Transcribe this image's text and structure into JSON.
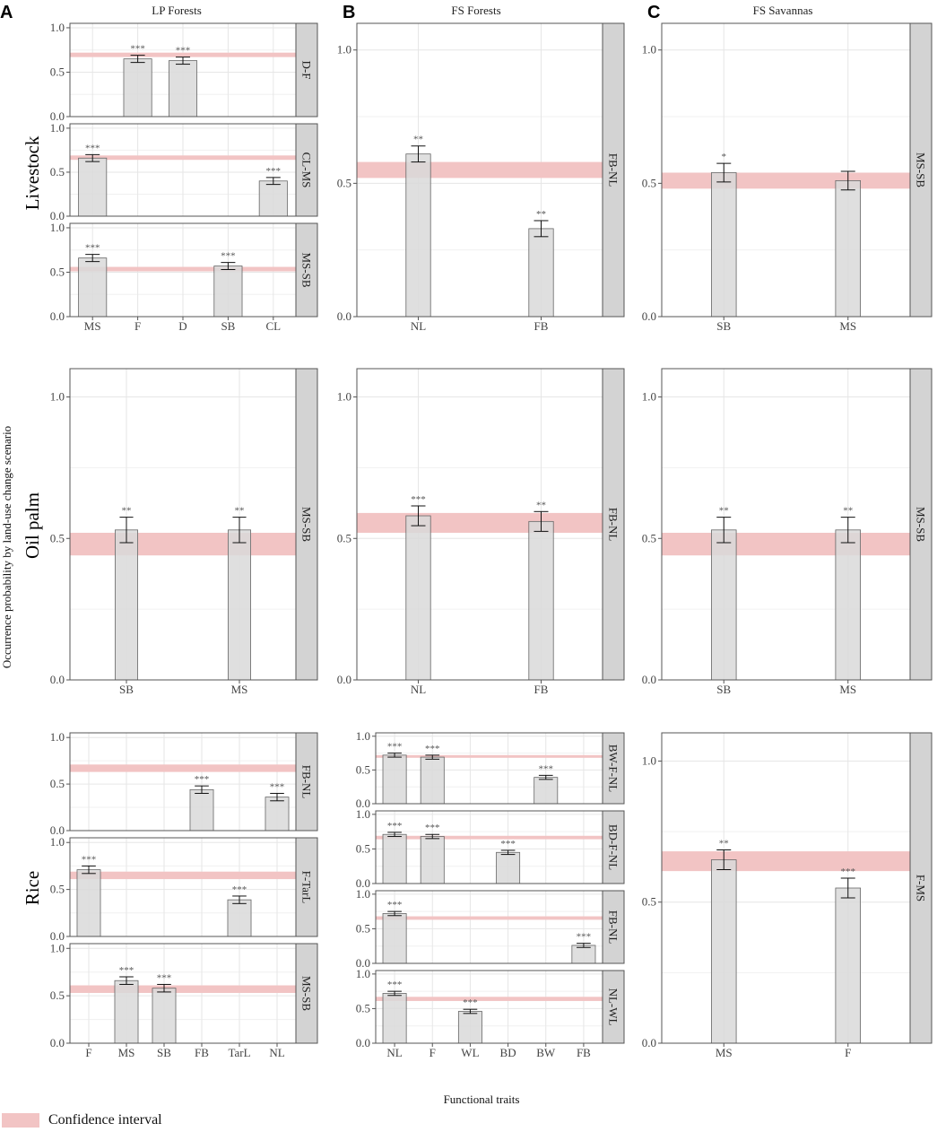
{
  "panel_letters": [
    "A",
    "B",
    "C"
  ],
  "column_titles": [
    "LP Forests",
    "FS Forests",
    "FS Savannas"
  ],
  "row_labels": [
    "Livestock",
    "Oil palm",
    "Rice"
  ],
  "y_axis_label": "Occurrence probability by land-use change scenario",
  "x_axis_label": "Functional traits",
  "legend": {
    "label": "Confidence interval",
    "color": "#f2c4c4"
  },
  "colors": {
    "bar_fill": "#d9d9d9",
    "bar_stroke": "#666666",
    "ci_band": "#f2c4c4",
    "strip_fill": "#d3d3d3",
    "grid": "#e6e6e6"
  },
  "chart_data": [
    {
      "type": "bar",
      "column": "LP Forests",
      "row": "Livestock",
      "categories": [
        "MS",
        "F",
        "D",
        "SB",
        "CL"
      ],
      "ylim": [
        0,
        1.05
      ],
      "yticks": [
        0.0,
        0.5,
        1.0
      ],
      "facets": [
        {
          "strip": "D-F",
          "ci": [
            0.67,
            0.72
          ],
          "bars": [
            {
              "x": "F",
              "y": 0.65,
              "err": 0.04,
              "sig": "***"
            },
            {
              "x": "D",
              "y": 0.63,
              "err": 0.04,
              "sig": "***"
            }
          ]
        },
        {
          "strip": "CL-MS",
          "ci": [
            0.64,
            0.69
          ],
          "bars": [
            {
              "x": "MS",
              "y": 0.66,
              "err": 0.04,
              "sig": "***"
            },
            {
              "x": "CL",
              "y": 0.4,
              "err": 0.04,
              "sig": "***"
            }
          ]
        },
        {
          "strip": "MS-SB",
          "ci": [
            0.51,
            0.56
          ],
          "bars": [
            {
              "x": "MS",
              "y": 0.66,
              "err": 0.04,
              "sig": "***"
            },
            {
              "x": "SB",
              "y": 0.57,
              "err": 0.04,
              "sig": "***"
            }
          ]
        }
      ]
    },
    {
      "type": "bar",
      "column": "FS Forests",
      "row": "Livestock",
      "categories": [
        "NL",
        "FB"
      ],
      "ylim": [
        0,
        1.1
      ],
      "yticks": [
        0.0,
        0.5,
        1.0
      ],
      "facets": [
        {
          "strip": "FB-NL",
          "ci": [
            0.52,
            0.58
          ],
          "bars": [
            {
              "x": "NL",
              "y": 0.61,
              "err": 0.03,
              "sig": "**"
            },
            {
              "x": "FB",
              "y": 0.33,
              "err": 0.03,
              "sig": "**"
            }
          ]
        }
      ]
    },
    {
      "type": "bar",
      "column": "FS Savannas",
      "row": "Livestock",
      "categories": [
        "SB",
        "MS"
      ],
      "ylim": [
        0,
        1.1
      ],
      "yticks": [
        0.0,
        0.5,
        1.0
      ],
      "facets": [
        {
          "strip": "MS-SB",
          "ci": [
            0.48,
            0.54
          ],
          "bars": [
            {
              "x": "SB",
              "y": 0.54,
              "err": 0.035,
              "sig": "*"
            },
            {
              "x": "MS",
              "y": 0.51,
              "err": 0.035,
              "sig": ""
            }
          ]
        }
      ]
    },
    {
      "type": "bar",
      "column": "LP Forests",
      "row": "Oil palm",
      "categories": [
        "SB",
        "MS"
      ],
      "ylim": [
        0,
        1.1
      ],
      "yticks": [
        0.0,
        0.5,
        1.0
      ],
      "facets": [
        {
          "strip": "MS-SB",
          "ci": [
            0.44,
            0.52
          ],
          "bars": [
            {
              "x": "SB",
              "y": 0.53,
              "err": 0.045,
              "sig": "**"
            },
            {
              "x": "MS",
              "y": 0.53,
              "err": 0.045,
              "sig": "**"
            }
          ]
        }
      ]
    },
    {
      "type": "bar",
      "column": "FS Forests",
      "row": "Oil palm",
      "categories": [
        "NL",
        "FB"
      ],
      "ylim": [
        0,
        1.1
      ],
      "yticks": [
        0.0,
        0.5,
        1.0
      ],
      "facets": [
        {
          "strip": "FB-NL",
          "ci": [
            0.52,
            0.59
          ],
          "bars": [
            {
              "x": "NL",
              "y": 0.58,
              "err": 0.035,
              "sig": "***"
            },
            {
              "x": "FB",
              "y": 0.56,
              "err": 0.035,
              "sig": "**"
            }
          ]
        }
      ]
    },
    {
      "type": "bar",
      "column": "FS Savannas",
      "row": "Oil palm",
      "categories": [
        "SB",
        "MS"
      ],
      "ylim": [
        0,
        1.1
      ],
      "yticks": [
        0.0,
        0.5,
        1.0
      ],
      "facets": [
        {
          "strip": "MS-SB",
          "ci": [
            0.44,
            0.52
          ],
          "bars": [
            {
              "x": "SB",
              "y": 0.53,
              "err": 0.045,
              "sig": "**"
            },
            {
              "x": "MS",
              "y": 0.53,
              "err": 0.045,
              "sig": "**"
            }
          ]
        }
      ]
    },
    {
      "type": "bar",
      "column": "LP Forests",
      "row": "Rice",
      "categories": [
        "F",
        "MS",
        "SB",
        "FB",
        "TarL",
        "NL"
      ],
      "ylim": [
        0,
        1.05
      ],
      "yticks": [
        0.0,
        0.5,
        1.0
      ],
      "facets": [
        {
          "strip": "FB-NL",
          "ci": [
            0.63,
            0.71
          ],
          "bars": [
            {
              "x": "FB",
              "y": 0.44,
              "err": 0.04,
              "sig": "***"
            },
            {
              "x": "NL",
              "y": 0.36,
              "err": 0.04,
              "sig": "***"
            }
          ]
        },
        {
          "strip": "F-TarL",
          "ci": [
            0.61,
            0.69
          ],
          "bars": [
            {
              "x": "F",
              "y": 0.71,
              "err": 0.04,
              "sig": "***"
            },
            {
              "x": "TarL",
              "y": 0.39,
              "err": 0.04,
              "sig": "***"
            }
          ]
        },
        {
          "strip": "MS-SB",
          "ci": [
            0.53,
            0.61
          ],
          "bars": [
            {
              "x": "MS",
              "y": 0.66,
              "err": 0.04,
              "sig": "***"
            },
            {
              "x": "SB",
              "y": 0.58,
              "err": 0.04,
              "sig": "***"
            }
          ]
        }
      ]
    },
    {
      "type": "bar",
      "column": "FS Forests",
      "row": "Rice",
      "categories": [
        "NL",
        "F",
        "WL",
        "BD",
        "BW",
        "FB"
      ],
      "ylim": [
        0,
        1.05
      ],
      "yticks": [
        0.0,
        0.5,
        1.0
      ],
      "facets": [
        {
          "strip": "BW-F-NL",
          "ci": [
            0.68,
            0.72
          ],
          "bars": [
            {
              "x": "NL",
              "y": 0.72,
              "err": 0.03,
              "sig": "***"
            },
            {
              "x": "F",
              "y": 0.69,
              "err": 0.03,
              "sig": "***"
            },
            {
              "x": "BW",
              "y": 0.39,
              "err": 0.03,
              "sig": "***"
            }
          ]
        },
        {
          "strip": "BD-F-NL",
          "ci": [
            0.64,
            0.69
          ],
          "bars": [
            {
              "x": "NL",
              "y": 0.71,
              "err": 0.03,
              "sig": "***"
            },
            {
              "x": "F",
              "y": 0.68,
              "err": 0.03,
              "sig": "***"
            },
            {
              "x": "BD",
              "y": 0.45,
              "err": 0.03,
              "sig": "***"
            }
          ]
        },
        {
          "strip": "FB-NL",
          "ci": [
            0.63,
            0.68
          ],
          "bars": [
            {
              "x": "NL",
              "y": 0.72,
              "err": 0.03,
              "sig": "***"
            },
            {
              "x": "FB",
              "y": 0.26,
              "err": 0.03,
              "sig": "***"
            }
          ]
        },
        {
          "strip": "NL-WL",
          "ci": [
            0.61,
            0.67
          ],
          "bars": [
            {
              "x": "NL",
              "y": 0.72,
              "err": 0.03,
              "sig": "***"
            },
            {
              "x": "WL",
              "y": 0.46,
              "err": 0.03,
              "sig": "***"
            }
          ]
        }
      ]
    },
    {
      "type": "bar",
      "column": "FS Savannas",
      "row": "Rice",
      "categories": [
        "MS",
        "F"
      ],
      "ylim": [
        0,
        1.1
      ],
      "yticks": [
        0.0,
        0.5,
        1.0
      ],
      "facets": [
        {
          "strip": "F-MS",
          "ci": [
            0.61,
            0.68
          ],
          "bars": [
            {
              "x": "MS",
              "y": 0.65,
              "err": 0.035,
              "sig": "**"
            },
            {
              "x": "F",
              "y": 0.55,
              "err": 0.035,
              "sig": "***"
            }
          ]
        }
      ]
    }
  ]
}
